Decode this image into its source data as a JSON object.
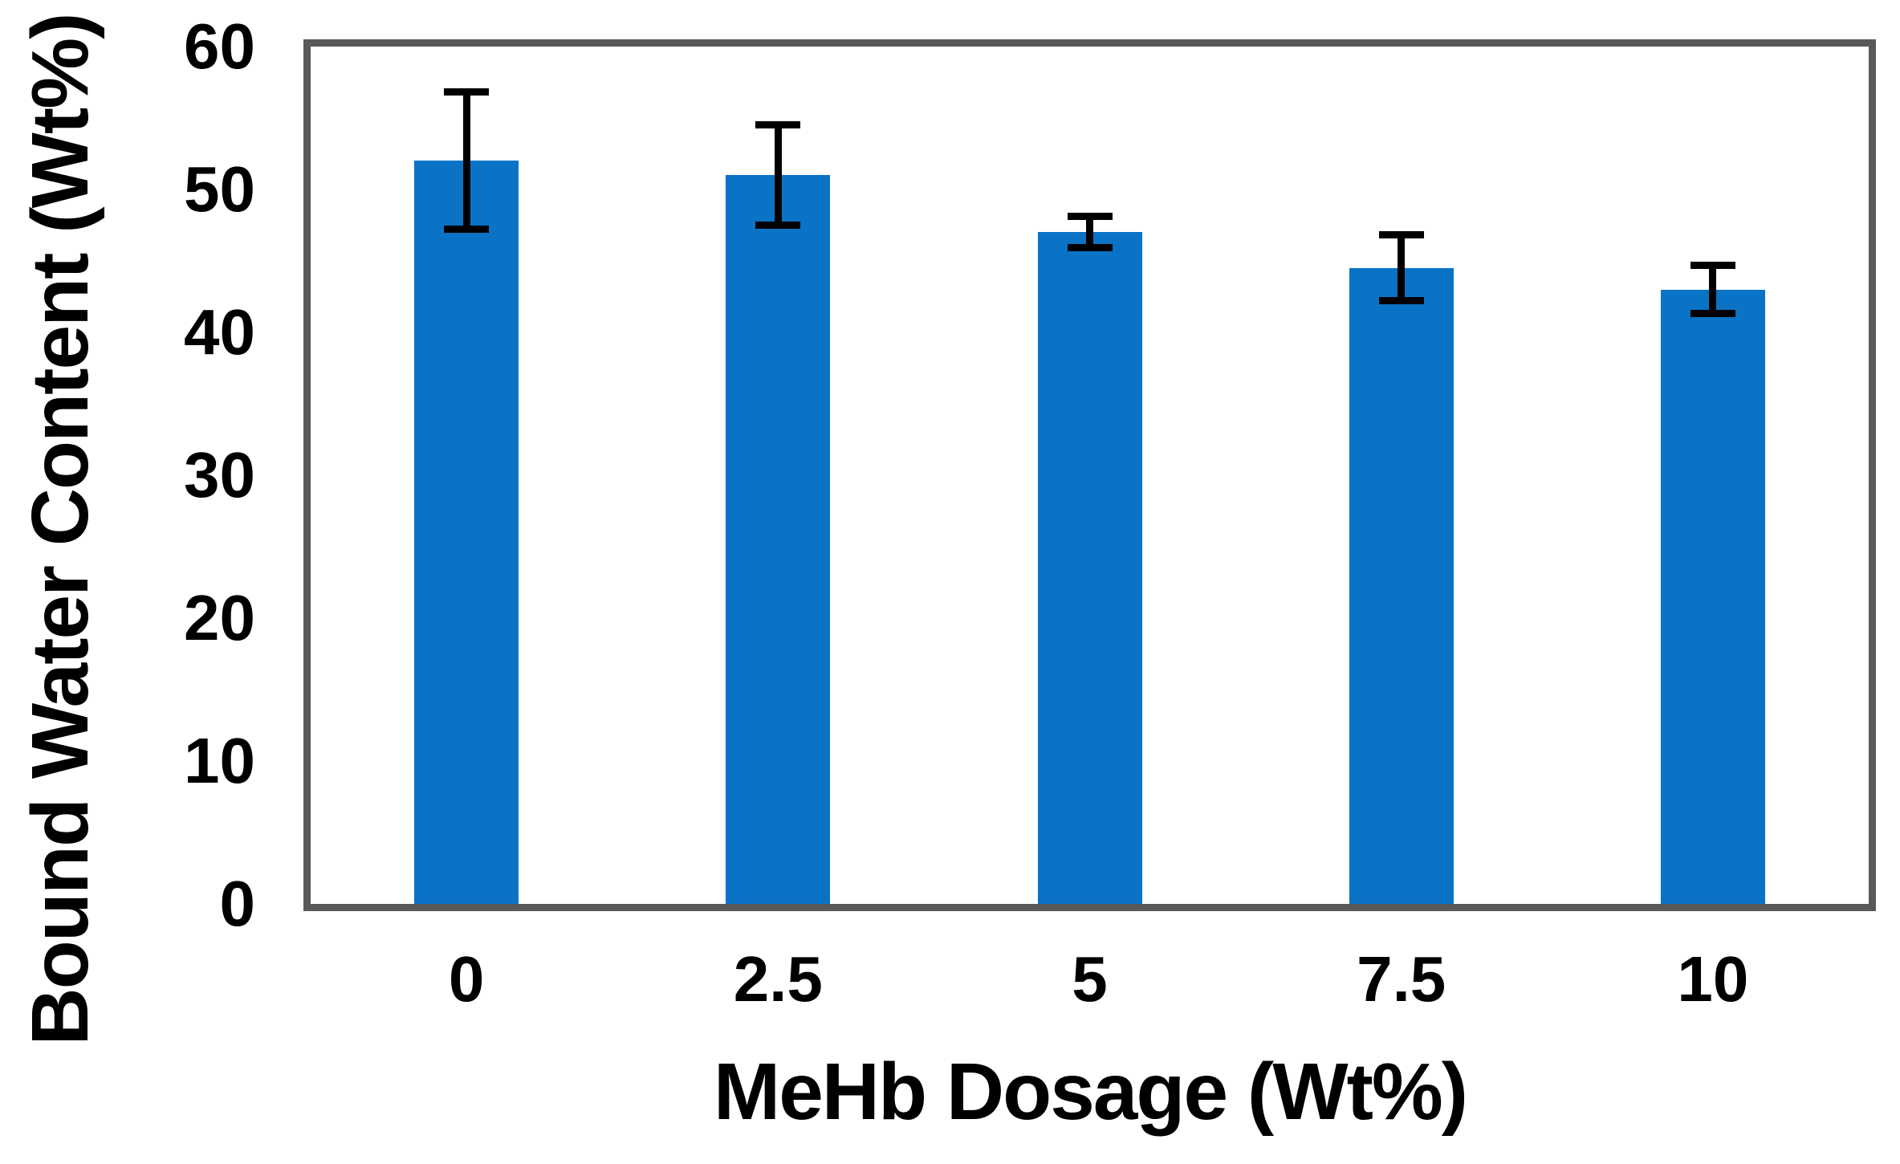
{
  "chart_data": {
    "type": "bar",
    "title": "",
    "xlabel": "MeHb Dosage (Wt%)",
    "ylabel": "Bound Water Content (Wt%)",
    "categories": [
      "0",
      "2.5",
      "5",
      "7.5",
      "10"
    ],
    "series": [
      {
        "name": "Bound Water Content",
        "values": [
          52.0,
          51.0,
          47.0,
          44.5,
          43.0
        ],
        "errors": [
          4.8,
          3.5,
          1.1,
          2.3,
          1.7
        ]
      }
    ],
    "ylim": [
      0,
      60
    ],
    "yticks": [
      0,
      10,
      20,
      30,
      40,
      50,
      60
    ],
    "grid": false,
    "legend": "none",
    "error_bars": "symmetric, black, capped",
    "colors": {
      "bar_fill": "#0B73C6",
      "plot_frame": "#595959",
      "error_bar": "#000000",
      "text": "#000000",
      "background": "#ffffff"
    }
  }
}
